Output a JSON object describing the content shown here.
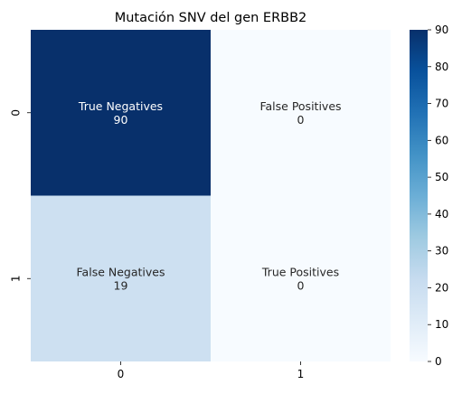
{
  "chart_data": {
    "type": "heatmap",
    "title": "Mutación SNV del gen ERBB2",
    "xlabel": "",
    "ylabel": "",
    "x_categories": [
      "0",
      "1"
    ],
    "y_categories": [
      "0",
      "1"
    ],
    "cells": [
      [
        {
          "label": "True Negatives",
          "value": 90
        },
        {
          "label": "False Positives",
          "value": 0
        }
      ],
      [
        {
          "label": "False Negatives",
          "value": 19
        },
        {
          "label": "True Positives",
          "value": 0
        }
      ]
    ],
    "colormap": "Blues",
    "colorbar": {
      "range": [
        0,
        90
      ],
      "ticks": [
        0,
        10,
        20,
        30,
        40,
        50,
        60,
        70,
        80,
        90
      ]
    }
  }
}
